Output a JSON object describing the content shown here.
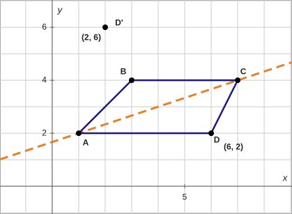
{
  "chart_data": {
    "type": "scatter",
    "xlim": [
      -1.97,
      9.05
    ],
    "ylim": [
      -1.05,
      7.03
    ],
    "xticks": [
      5
    ],
    "yticks": [
      2,
      4,
      6
    ],
    "xgrid": [
      -1,
      0,
      1,
      2,
      3,
      4,
      5,
      6,
      7,
      8,
      9
    ],
    "ygrid": [
      -1,
      0,
      1,
      2,
      3,
      4,
      5,
      6,
      7
    ],
    "xlabel": "x",
    "ylabel": "y",
    "points": {
      "labels": [
        "A",
        "B",
        "C",
        "D",
        "D'"
      ],
      "x": [
        1,
        3,
        7,
        6,
        2
      ],
      "y": [
        2,
        4,
        4,
        2,
        6
      ],
      "value_labels": [
        null,
        null,
        null,
        "(6, 2)",
        "(2, 6)"
      ],
      "color": "#000000"
    },
    "polygon": {
      "x": [
        1,
        3,
        7,
        6,
        1
      ],
      "y": [
        2,
        4,
        4,
        2,
        2
      ],
      "color": "#1c1c7a"
    },
    "dashed_line": {
      "x": [
        -1.97,
        9.05
      ],
      "y": [
        1.01,
        4.68
      ],
      "color": "#e6812a"
    }
  }
}
